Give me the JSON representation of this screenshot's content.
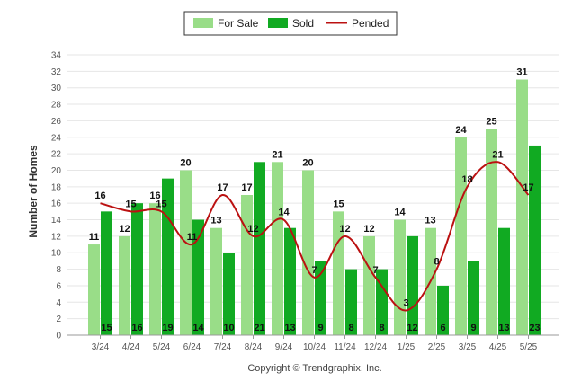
{
  "chart_data": {
    "type": "bar",
    "categories": [
      "3/24",
      "4/24",
      "5/24",
      "6/24",
      "7/24",
      "8/24",
      "9/24",
      "10/24",
      "11/24",
      "12/24",
      "1/25",
      "2/25",
      "3/25",
      "4/25",
      "5/25"
    ],
    "series": [
      {
        "name": "For Sale",
        "type": "bar",
        "color": "#99dd88",
        "values": [
          11,
          12,
          16,
          20,
          13,
          17,
          21,
          20,
          15,
          12,
          14,
          13,
          24,
          25,
          31
        ]
      },
      {
        "name": "Sold",
        "type": "bar",
        "color": "#11aa22",
        "values": [
          15,
          16,
          19,
          14,
          10,
          21,
          13,
          9,
          8,
          8,
          12,
          6,
          9,
          13,
          23
        ]
      },
      {
        "name": "Pended",
        "type": "line",
        "color": "#bb1111",
        "values": [
          16,
          15,
          15,
          11,
          17,
          12,
          14,
          7,
          12,
          7,
          3,
          8,
          18,
          21,
          17
        ]
      }
    ],
    "ylabel": "Number of Homes",
    "ylim": [
      0,
      34
    ],
    "yticks": [
      0,
      2,
      4,
      6,
      8,
      10,
      12,
      14,
      16,
      18,
      20,
      22,
      24,
      26,
      28,
      30,
      32,
      34
    ],
    "grid": true,
    "legend": "top-center",
    "copyright": "Copyright © Trendgraphix, Inc."
  }
}
